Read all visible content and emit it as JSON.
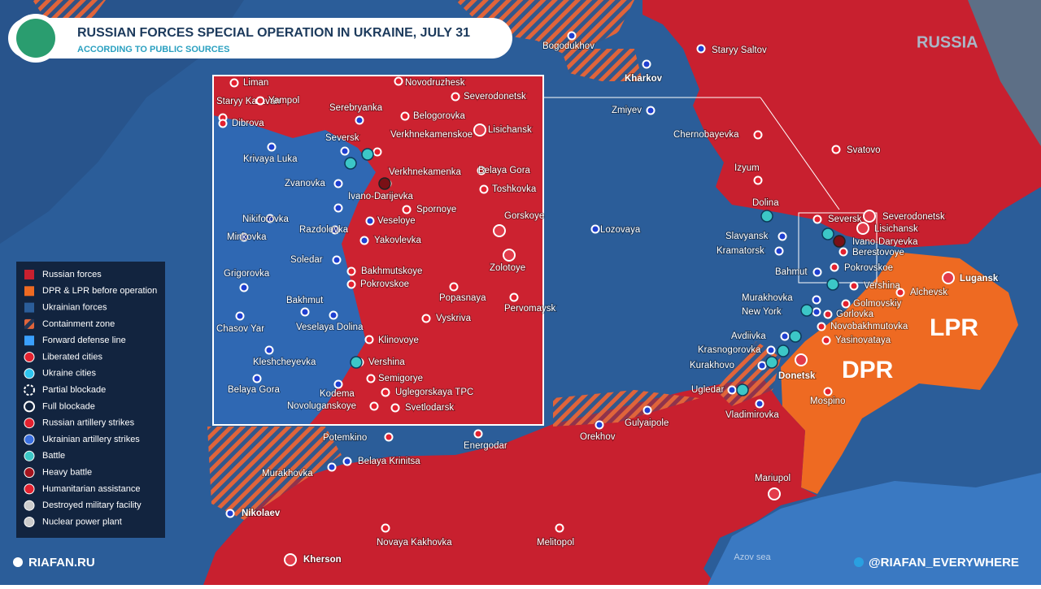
{
  "header": {
    "title": "RUSSIAN FORCES SPECIAL OPERATION IN UKRAINE, JULY 31",
    "subtitle": "ACCORDING TO PUBLIC SOURCES"
  },
  "regions": {
    "russia": "RUSSIA",
    "lpr": "LPR",
    "dpr": "DPR",
    "sea": "Azov sea"
  },
  "legend": [
    "Russian forces",
    "DPR & LPR before operation",
    "Ukrainian forces",
    "Containment zone",
    "Forward defense line",
    "Liberated cities",
    "Ukraine cities",
    "Partial blockade",
    "Full blockade",
    "Russian artillery strikes",
    "Ukrainian artillery strikes",
    "Battle",
    "Heavy battle",
    "Humanitarian assistance",
    "Destroyed military facility",
    "Nuclear power plant"
  ],
  "cities": [
    "Bogodukhov",
    "Kharkov",
    "Staryy Saltov",
    "Zmiyev",
    "Chernobayevka",
    "Svatovo",
    "Izyum",
    "Dolina",
    "Lozovaya",
    "Slavyansk",
    "Kramatorsk",
    "Seversk",
    "Severodonetsk",
    "Lisichansk",
    "Ivano-Daryevka",
    "Berestovoye",
    "Bahmut",
    "Pokrovskoe",
    "Vershina",
    "Golmovskiy",
    "Gorlovka",
    "Murakhovka",
    "New York",
    "Novobakhmutovka",
    "Avdiivka",
    "Yasinovataya",
    "Krasnogorovka",
    "Kurakhovo",
    "Donetsk",
    "Ugledar",
    "Vladimirovka",
    "Mospino",
    "Alchevsk",
    "Lugansk",
    "Gulyaipole",
    "Orekhov",
    "Energodar",
    "Potemkino",
    "Belaya Krinitsa",
    "Murakhovka",
    "Nikolaev",
    "Novaya Kakhovka",
    "Melitopol",
    "Mariupol",
    "Kherson"
  ],
  "inset_cities": [
    "Liman",
    "Staryy Karavan",
    "Yampol",
    "Serebryanka",
    "Novodruzhesk",
    "Severodonetsk",
    "Belogorovka",
    "Lisichansk",
    "Dibrova",
    "Seversk",
    "Verkhnekamenskoe",
    "Krivaya Luka",
    "Verkhnekamenka",
    "Belaya Gora",
    "Zvanovka",
    "Ivano-Darijevka",
    "Toshkovka",
    "Spornoye",
    "Veseloye",
    "Gorskoye",
    "Nikiforovka",
    "Razdolovka",
    "Yakovlevka",
    "Minkovka",
    "Soledar",
    "Bakhmutskoye",
    "Zolotoye",
    "Grigorovka",
    "Pokrovskoe",
    "Bakhmut",
    "Popasnaya",
    "Pervomaysk",
    "Chasov Yar",
    "Vyskriva",
    "Veselaya Dolina",
    "Klinovoye",
    "Kleshcheyevka",
    "Vershina",
    "Semigorye",
    "Belaya Gora",
    "Kodema",
    "Uglegorskaya TPC",
    "Novoluganskoye",
    "Svetlodarsk"
  ],
  "footer": {
    "site": "RIAFAN.RU",
    "telegram": "@RIAFAN_EVERYWHERE"
  }
}
